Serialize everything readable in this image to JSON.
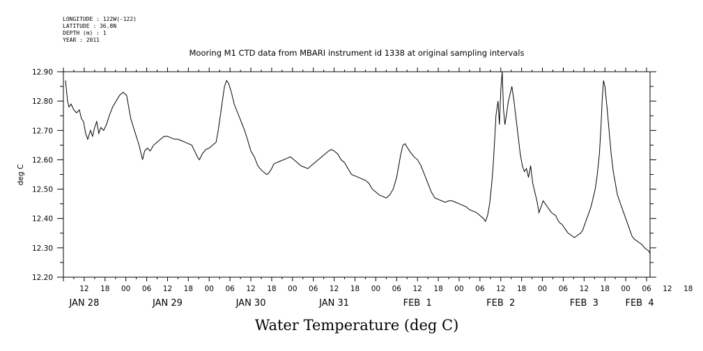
{
  "header": {
    "longitude": "LONGITUDE : 122W(-122)",
    "latitude": "LATITUDE : 36.8N",
    "depth": "DEPTH (m) : 1",
    "year": "YEAR : 2011"
  },
  "chart_data": {
    "type": "line",
    "title": "Mooring M1 CTD data from MBARI instrument id 1338 at original sampling intervals",
    "xlabel": "Water Temperature (deg C)",
    "ylabel": "deg C",
    "ylim": [
      12.2,
      12.9
    ],
    "yticks": [
      "12.20",
      "12.30",
      "12.40",
      "12.50",
      "12.60",
      "12.70",
      "12.80",
      "12.90"
    ],
    "xlim_hours": [
      0,
      169
    ],
    "x_unit": "hours since JAN 28 06:00 2011",
    "hour_ticks": [
      "12",
      "18",
      "00",
      "06",
      "12",
      "18",
      "00",
      "06",
      "12",
      "18",
      "00",
      "06",
      "12",
      "18",
      "00",
      "06",
      "12",
      "18",
      "00",
      "06",
      "12",
      "18",
      "00",
      "06",
      "12",
      "18",
      "00",
      "06",
      "12",
      "18",
      "00",
      "06"
    ],
    "date_labels": [
      "JAN 28",
      "JAN 29",
      "JAN 30",
      "JAN 31",
      "FEB  1",
      "FEB  2",
      "FEB  3",
      "FEB  4"
    ],
    "grid": false,
    "series": [
      {
        "points": [
          [
            0.6,
            12.87
          ],
          [
            1.2,
            12.8
          ],
          [
            1.6,
            12.78
          ],
          [
            2.2,
            12.79
          ],
          [
            3,
            12.77
          ],
          [
            3.8,
            12.76
          ],
          [
            4.6,
            12.77
          ],
          [
            5.2,
            12.74
          ],
          [
            5.8,
            12.73
          ],
          [
            6.4,
            12.69
          ],
          [
            7,
            12.67
          ],
          [
            7.8,
            12.7
          ],
          [
            8.4,
            12.68
          ],
          [
            9,
            12.71
          ],
          [
            9.6,
            12.73
          ],
          [
            10.2,
            12.69
          ],
          [
            10.8,
            12.71
          ],
          [
            11.6,
            12.7
          ],
          [
            12.4,
            12.72
          ],
          [
            13.2,
            12.75
          ],
          [
            14.2,
            12.78
          ],
          [
            15.2,
            12.8
          ],
          [
            16.2,
            12.82
          ],
          [
            17.2,
            12.83
          ],
          [
            18.2,
            12.82
          ],
          [
            18.8,
            12.78
          ],
          [
            19.4,
            12.74
          ],
          [
            20.2,
            12.71
          ],
          [
            21,
            12.68
          ],
          [
            21.8,
            12.65
          ],
          [
            22.4,
            12.62
          ],
          [
            22.8,
            12.6
          ],
          [
            23.4,
            12.63
          ],
          [
            24.2,
            12.64
          ],
          [
            25,
            12.63
          ],
          [
            26,
            12.65
          ],
          [
            27,
            12.66
          ],
          [
            28,
            12.67
          ],
          [
            29,
            12.68
          ],
          [
            30,
            12.68
          ],
          [
            31,
            12.675
          ],
          [
            32,
            12.67
          ],
          [
            33,
            12.67
          ],
          [
            34,
            12.665
          ],
          [
            35,
            12.66
          ],
          [
            36,
            12.655
          ],
          [
            37,
            12.65
          ],
          [
            37.8,
            12.63
          ],
          [
            38.6,
            12.61
          ],
          [
            39.2,
            12.6
          ],
          [
            40,
            12.62
          ],
          [
            41,
            12.635
          ],
          [
            42,
            12.64
          ],
          [
            43,
            12.65
          ],
          [
            44,
            12.66
          ],
          [
            44.6,
            12.7
          ],
          [
            45.2,
            12.75
          ],
          [
            45.8,
            12.8
          ],
          [
            46.4,
            12.85
          ],
          [
            47,
            12.87
          ],
          [
            47.6,
            12.86
          ],
          [
            48.4,
            12.83
          ],
          [
            49.2,
            12.79
          ],
          [
            50.2,
            12.76
          ],
          [
            51.2,
            12.73
          ],
          [
            52.2,
            12.7
          ],
          [
            53,
            12.67
          ],
          [
            54,
            12.63
          ],
          [
            55,
            12.61
          ],
          [
            56,
            12.58
          ],
          [
            57,
            12.565
          ],
          [
            58,
            12.555
          ],
          [
            58.6,
            12.55
          ],
          [
            59.2,
            12.555
          ],
          [
            60,
            12.57
          ],
          [
            60.6,
            12.585
          ],
          [
            61.4,
            12.59
          ],
          [
            62.4,
            12.595
          ],
          [
            63.4,
            12.6
          ],
          [
            64.4,
            12.605
          ],
          [
            65.4,
            12.61
          ],
          [
            66.4,
            12.6
          ],
          [
            67.4,
            12.59
          ],
          [
            68.4,
            12.58
          ],
          [
            69.4,
            12.575
          ],
          [
            70.4,
            12.57
          ],
          [
            71.4,
            12.58
          ],
          [
            72.4,
            12.59
          ],
          [
            73.4,
            12.6
          ],
          [
            74.4,
            12.61
          ],
          [
            75.4,
            12.62
          ],
          [
            76.4,
            12.63
          ],
          [
            77.2,
            12.635
          ],
          [
            78,
            12.63
          ],
          [
            79,
            12.62
          ],
          [
            80,
            12.6
          ],
          [
            81,
            12.59
          ],
          [
            82,
            12.57
          ],
          [
            83,
            12.55
          ],
          [
            84,
            12.545
          ],
          [
            85,
            12.54
          ],
          [
            86,
            12.535
          ],
          [
            87,
            12.53
          ],
          [
            88,
            12.52
          ],
          [
            89,
            12.5
          ],
          [
            90,
            12.49
          ],
          [
            91,
            12.48
          ],
          [
            92,
            12.475
          ],
          [
            93,
            12.47
          ],
          [
            94,
            12.48
          ],
          [
            95,
            12.5
          ],
          [
            96,
            12.54
          ],
          [
            96.6,
            12.58
          ],
          [
            97.2,
            12.62
          ],
          [
            97.8,
            12.65
          ],
          [
            98.4,
            12.655
          ],
          [
            99.2,
            12.64
          ],
          [
            100,
            12.625
          ],
          [
            101,
            12.61
          ],
          [
            102,
            12.6
          ],
          [
            103,
            12.58
          ],
          [
            104,
            12.55
          ],
          [
            105,
            12.52
          ],
          [
            106,
            12.49
          ],
          [
            107,
            12.47
          ],
          [
            108,
            12.465
          ],
          [
            109,
            12.46
          ],
          [
            110,
            12.455
          ],
          [
            111,
            12.46
          ],
          [
            112,
            12.46
          ],
          [
            113,
            12.455
          ],
          [
            114,
            12.45
          ],
          [
            115,
            12.445
          ],
          [
            116,
            12.44
          ],
          [
            117,
            12.43
          ],
          [
            118,
            12.425
          ],
          [
            119,
            12.42
          ],
          [
            120,
            12.41
          ],
          [
            121,
            12.4
          ],
          [
            121.6,
            12.39
          ],
          [
            122.2,
            12.41
          ],
          [
            122.8,
            12.45
          ],
          [
            123.4,
            12.52
          ],
          [
            123.8,
            12.58
          ],
          [
            124.2,
            12.66
          ],
          [
            124.6,
            12.75
          ],
          [
            125.2,
            12.8
          ],
          [
            125.6,
            12.72
          ],
          [
            126,
            12.84
          ],
          [
            126.4,
            12.9
          ],
          [
            126.8,
            12.77
          ],
          [
            127.2,
            12.72
          ],
          [
            127.6,
            12.75
          ],
          [
            128.2,
            12.8
          ],
          [
            128.6,
            12.82
          ],
          [
            129.2,
            12.85
          ],
          [
            129.8,
            12.8
          ],
          [
            130.4,
            12.74
          ],
          [
            131,
            12.68
          ],
          [
            131.6,
            12.62
          ],
          [
            132.2,
            12.58
          ],
          [
            132.8,
            12.56
          ],
          [
            133.4,
            12.57
          ],
          [
            134,
            12.54
          ],
          [
            134.6,
            12.58
          ],
          [
            135.2,
            12.52
          ],
          [
            135.8,
            12.49
          ],
          [
            136.4,
            12.46
          ],
          [
            137,
            12.42
          ],
          [
            137.6,
            12.44
          ],
          [
            138.2,
            12.46
          ],
          [
            138.8,
            12.45
          ],
          [
            139.4,
            12.44
          ],
          [
            140,
            12.43
          ],
          [
            140.6,
            12.42
          ],
          [
            141.2,
            12.415
          ],
          [
            141.8,
            12.41
          ],
          [
            142.4,
            12.395
          ],
          [
            143,
            12.385
          ],
          [
            143.6,
            12.38
          ],
          [
            144.2,
            12.37
          ],
          [
            144.8,
            12.36
          ],
          [
            145.4,
            12.35
          ],
          [
            146,
            12.345
          ],
          [
            146.6,
            12.34
          ],
          [
            147.2,
            12.335
          ],
          [
            147.8,
            12.34
          ],
          [
            148.4,
            12.345
          ],
          [
            149,
            12.35
          ],
          [
            149.6,
            12.36
          ],
          [
            150.2,
            12.38
          ],
          [
            150.8,
            12.4
          ],
          [
            151.4,
            12.42
          ],
          [
            152,
            12.44
          ],
          [
            152.6,
            12.47
          ],
          [
            153.2,
            12.5
          ],
          [
            153.8,
            12.55
          ],
          [
            154.4,
            12.62
          ],
          [
            154.8,
            12.7
          ],
          [
            155.2,
            12.8
          ],
          [
            155.6,
            12.87
          ],
          [
            156,
            12.85
          ],
          [
            156.6,
            12.78
          ],
          [
            157.2,
            12.7
          ],
          [
            157.8,
            12.62
          ],
          [
            158.4,
            12.56
          ],
          [
            159,
            12.52
          ],
          [
            159.6,
            12.48
          ],
          [
            160.2,
            12.46
          ],
          [
            160.8,
            12.44
          ],
          [
            161.4,
            12.42
          ],
          [
            162,
            12.4
          ],
          [
            162.6,
            12.38
          ],
          [
            163.2,
            12.36
          ],
          [
            163.8,
            12.34
          ],
          [
            164.4,
            12.33
          ],
          [
            165,
            12.325
          ],
          [
            165.6,
            12.32
          ],
          [
            166.2,
            12.315
          ],
          [
            166.8,
            12.31
          ],
          [
            167.4,
            12.3
          ],
          [
            168,
            12.295
          ],
          [
            168.6,
            12.29
          ],
          [
            169,
            12.28
          ]
        ]
      }
    ]
  }
}
